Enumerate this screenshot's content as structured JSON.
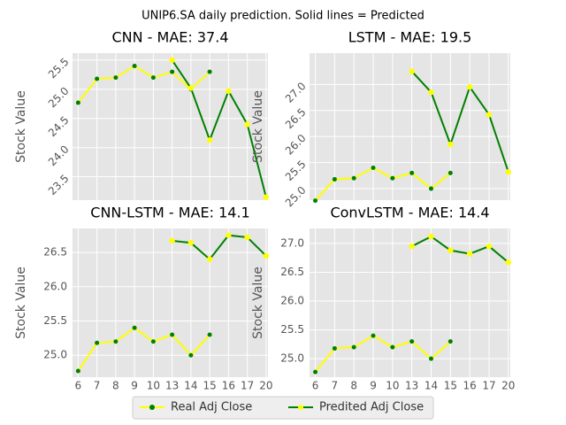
{
  "title": "UNIP6.SA daily prediction. Solid lines = Predicted",
  "chart_data": [
    {
      "type": "line",
      "title": "CNN - MAE: 37.4",
      "ylabel": "Stock Value",
      "categories": [
        "6",
        "7",
        "8",
        "9",
        "10",
        "13",
        "14",
        "15",
        "16",
        "17",
        "20"
      ],
      "series": [
        {
          "name": "Real Adj Close",
          "color": "#ffff00",
          "marker_color": "#008000",
          "values": [
            24.77,
            25.18,
            25.2,
            25.4,
            25.2,
            25.3,
            25.0,
            25.3,
            null,
            null,
            null
          ]
        },
        {
          "name": "Predited Adj Close",
          "color": "#008000",
          "marker_color": "#ffff00",
          "values": [
            null,
            null,
            null,
            null,
            null,
            25.5,
            25.02,
            24.13,
            24.97,
            24.4,
            23.15
          ]
        }
      ],
      "ylim": [
        23.1,
        25.62
      ],
      "yticks": [
        {
          "value": 23.5,
          "label": "23.5"
        },
        {
          "value": 24,
          "label": "24.0"
        },
        {
          "value": 24.5,
          "label": "24.5"
        },
        {
          "value": 25,
          "label": "25.0"
        },
        {
          "value": 25.5,
          "label": "25.5"
        }
      ],
      "grid": true,
      "ytick_rotation": 45,
      "show_xticklabels": false
    },
    {
      "type": "line",
      "title": "LSTM - MAE: 19.5",
      "ylabel": "Stock Value",
      "categories": [
        "6",
        "7",
        "8",
        "9",
        "10",
        "13",
        "14",
        "15",
        "16",
        "17",
        "20"
      ],
      "series": [
        {
          "name": "Real Adj Close",
          "color": "#ffff00",
          "marker_color": "#008000",
          "values": [
            24.77,
            25.18,
            25.2,
            25.4,
            25.2,
            25.3,
            25.0,
            25.3,
            null,
            null,
            null
          ]
        },
        {
          "name": "Predited Adj Close",
          "color": "#008000",
          "marker_color": "#ffff00",
          "values": [
            null,
            null,
            null,
            null,
            null,
            27.25,
            26.85,
            25.85,
            26.95,
            26.42,
            25.32
          ]
        }
      ],
      "ylim": [
        24.78,
        27.6
      ],
      "yticks": [
        {
          "value": 25,
          "label": "25.0"
        },
        {
          "value": 25.5,
          "label": "25.5"
        },
        {
          "value": 26,
          "label": "26.0"
        },
        {
          "value": 26.5,
          "label": "26.5"
        },
        {
          "value": 27,
          "label": "27.0"
        }
      ],
      "grid": true,
      "ytick_rotation": 45,
      "show_xticklabels": false
    },
    {
      "type": "line",
      "title": "CNN-LSTM - MAE: 14.1",
      "ylabel": "Stock Value",
      "categories": [
        "6",
        "7",
        "8",
        "9",
        "10",
        "13",
        "14",
        "15",
        "16",
        "17",
        "20"
      ],
      "series": [
        {
          "name": "Real Adj Close",
          "color": "#ffff00",
          "marker_color": "#008000",
          "values": [
            24.77,
            25.18,
            25.2,
            25.4,
            25.2,
            25.3,
            25.0,
            25.3,
            null,
            null,
            null
          ]
        },
        {
          "name": "Predited Adj Close",
          "color": "#008000",
          "marker_color": "#ffff00",
          "values": [
            null,
            null,
            null,
            null,
            null,
            26.67,
            26.64,
            26.4,
            26.75,
            26.72,
            26.45
          ]
        }
      ],
      "ylim": [
        24.68,
        26.85
      ],
      "yticks": [
        {
          "value": 25,
          "label": "25.0"
        },
        {
          "value": 25.5,
          "label": "25.5"
        },
        {
          "value": 26,
          "label": "26.0"
        },
        {
          "value": 26.5,
          "label": "26.5"
        }
      ],
      "grid": true,
      "ytick_rotation": 0,
      "show_xticklabels": true
    },
    {
      "type": "line",
      "title": "ConvLSTM - MAE: 14.4",
      "ylabel": "Stock Value",
      "categories": [
        "6",
        "7",
        "8",
        "9",
        "10",
        "13",
        "14",
        "15",
        "16",
        "17",
        "20"
      ],
      "series": [
        {
          "name": "Real Adj Close",
          "color": "#ffff00",
          "marker_color": "#008000",
          "values": [
            24.77,
            25.18,
            25.2,
            25.4,
            25.2,
            25.3,
            25.0,
            25.3,
            null,
            null,
            null
          ]
        },
        {
          "name": "Predited Adj Close",
          "color": "#008000",
          "marker_color": "#ffff00",
          "values": [
            null,
            null,
            null,
            null,
            null,
            26.95,
            27.12,
            26.88,
            26.82,
            26.95,
            26.67
          ]
        }
      ],
      "ylim": [
        24.68,
        27.26
      ],
      "yticks": [
        {
          "value": 25,
          "label": "25.0"
        },
        {
          "value": 25.5,
          "label": "25.5"
        },
        {
          "value": 26,
          "label": "26.0"
        },
        {
          "value": 26.5,
          "label": "26.5"
        },
        {
          "value": 27,
          "label": "27.0"
        }
      ],
      "grid": true,
      "ytick_rotation": 0,
      "show_xticklabels": true
    }
  ]
}
